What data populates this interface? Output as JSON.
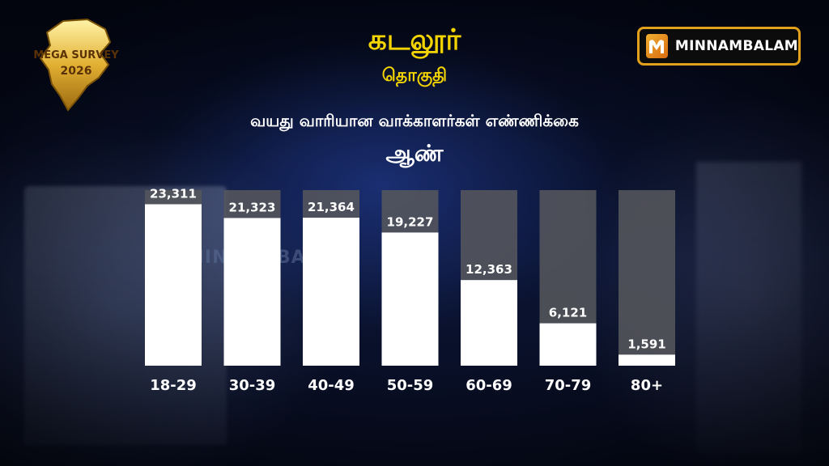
{
  "header": {
    "title": "கடலூர்",
    "subtitle": "தொகுதி",
    "heading": "வயது வாரியான வாக்காளர்கள் எண்ணிக்கை",
    "gender_label": "ஆண்"
  },
  "logos": {
    "left": {
      "line1": "MEGA SURVEY",
      "line2": "2026"
    },
    "right": {
      "brand": "MINNAMBALAM"
    }
  },
  "watermark": "MINNAMBALAM",
  "colors": {
    "title": "#f3d400",
    "bar_fill": "#ffffff",
    "bar_track": "#55565c",
    "accent_border": "#e2a11a"
  },
  "chart_data": {
    "type": "bar",
    "title": "வயது வாரியான வாக்காளர்கள் எண்ணிக்கை",
    "categories": [
      "18-29",
      "30-39",
      "40-49",
      "50-59",
      "60-69",
      "70-79",
      "80+"
    ],
    "values": [
      23311,
      21323,
      21364,
      19227,
      12363,
      6121,
      1591
    ],
    "value_labels": [
      "23,311",
      "21,323",
      "21,364",
      "19,227",
      "12,363",
      "6,121",
      "1,591"
    ],
    "xlabel": "",
    "ylabel": "",
    "ylim": [
      0,
      25000
    ],
    "grid": false,
    "legend": "none"
  }
}
